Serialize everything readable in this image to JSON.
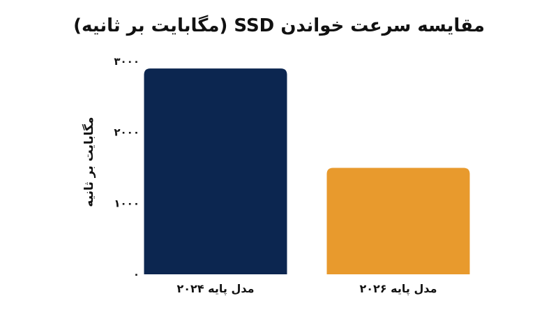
{
  "chart_data": {
    "type": "bar",
    "title": "مقایسه سرعت خواندن SSD (مگابایت بر ثانیه)",
    "xlabel": "",
    "ylabel": "مگابایت بر ثانیه",
    "categories": [
      "مدل پایه ۲۰۲۴",
      "مدل پایه ۲۰۲۶"
    ],
    "values": [
      2900,
      1500
    ],
    "colors": [
      "#0c2650",
      "#e89a2d"
    ],
    "ylim": [
      0,
      3000
    ],
    "yticks": [
      0,
      1000,
      2000,
      3000
    ],
    "ytick_labels": [
      "۰",
      "۱۰۰۰",
      "۲۰۰۰",
      "۳۰۰۰"
    ],
    "grid": false,
    "legend": "none"
  }
}
